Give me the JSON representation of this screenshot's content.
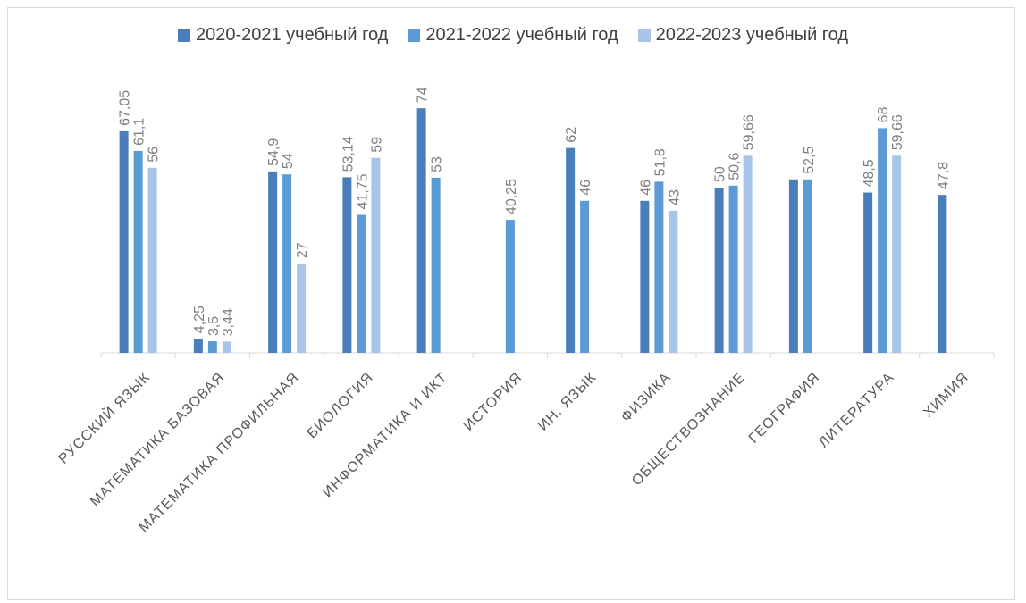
{
  "chart_data": {
    "type": "bar",
    "categories": [
      "РУССКИЙ ЯЗЫК",
      "МАТЕМАТИКА БАЗОВАЯ",
      "МАТЕМАТИКА ПРОФИЛЬНАЯ",
      "БИОЛОГИЯ",
      "ИНФОРМАТИКА И ИКТ",
      "ИСТОРИЯ",
      "ИН. ЯЗЫК",
      "ФИЗИКА",
      "ОБЩЕСТВОЗНАНИЕ",
      "ГЕОГРАФИЯ",
      "ЛИТЕРАТУРА",
      "ХИМИЯ"
    ],
    "series": [
      {
        "name": "2020-2021 учебный год",
        "color": "#4a7ebb",
        "values": [
          67.05,
          4.25,
          54.9,
          53.14,
          74,
          null,
          62,
          46,
          50,
          52.5,
          48.5,
          47.8
        ],
        "labels": [
          "67,05",
          "4,25",
          "54,9",
          "53,14",
          "74",
          "",
          "62",
          "46",
          "50",
          "",
          "48,5",
          "47,8"
        ]
      },
      {
        "name": "2021-2022 учебный год",
        "color": "#5b9bd5",
        "values": [
          61.1,
          3.5,
          54,
          41.75,
          53,
          40.25,
          46,
          51.8,
          50.6,
          52.5,
          68,
          null
        ],
        "labels": [
          "61,1",
          "3,5",
          "54",
          "41,75",
          "53",
          "40,25",
          "46",
          "51,8",
          "50,6",
          "52,5",
          "68",
          ""
        ]
      },
      {
        "name": "2022-2023 учебный год",
        "color": "#a6c5e8",
        "values": [
          56,
          3.44,
          27,
          59,
          null,
          null,
          null,
          43,
          59.66,
          null,
          59.66,
          null
        ],
        "labels": [
          "56",
          "3,44",
          "27",
          "59",
          "",
          "",
          "",
          "43",
          "59,66",
          "",
          "59,66",
          ""
        ]
      }
    ],
    "ylim": [
      0,
      80
    ],
    "grid": false,
    "legend_position": "top"
  }
}
